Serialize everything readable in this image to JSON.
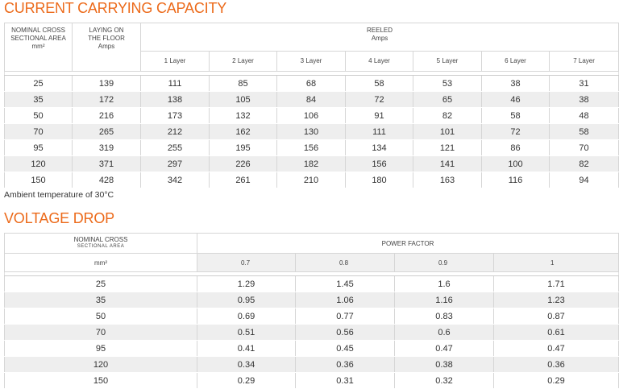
{
  "current_carrying": {
    "title": "CURRENT CARRYING CAPACITY",
    "col_area": [
      "NOMINAL CROSS",
      "SECTIONAL AREA",
      "mm²"
    ],
    "col_floor": [
      "LAYING ON",
      "THE FLOOR",
      "Amps"
    ],
    "reeled": [
      "REELED",
      "Amps"
    ],
    "layers": [
      "1 Layer",
      "2 Layer",
      "3 Layer",
      "4 Layer",
      "5 Layer",
      "6 Layer",
      "7 Layer"
    ],
    "rows": [
      [
        "25",
        "139",
        "111",
        "85",
        "68",
        "58",
        "53",
        "38",
        "31"
      ],
      [
        "35",
        "172",
        "138",
        "105",
        "84",
        "72",
        "65",
        "46",
        "38"
      ],
      [
        "50",
        "216",
        "173",
        "132",
        "106",
        "91",
        "82",
        "58",
        "48"
      ],
      [
        "70",
        "265",
        "212",
        "162",
        "130",
        "111",
        "101",
        "72",
        "58"
      ],
      [
        "95",
        "319",
        "255",
        "195",
        "156",
        "134",
        "121",
        "86",
        "70"
      ],
      [
        "120",
        "371",
        "297",
        "226",
        "182",
        "156",
        "141",
        "100",
        "82"
      ],
      [
        "150",
        "428",
        "342",
        "261",
        "210",
        "180",
        "163",
        "116",
        "94"
      ]
    ],
    "note": "Ambient temperature of 30°C"
  },
  "voltage_drop": {
    "title": "VOLTAGE DROP",
    "col_area": [
      "NOMINAL CROSS",
      "SECTIONAL AREA",
      "mm²"
    ],
    "power_factor": "POWER FACTOR",
    "factors": [
      "0.7",
      "0.8",
      "0.9",
      "1"
    ],
    "rows": [
      [
        "25",
        "1.29",
        "1.45",
        "1.6",
        "1.71"
      ],
      [
        "35",
        "0.95",
        "1.06",
        "1.16",
        "1.23"
      ],
      [
        "50",
        "0.69",
        "0.77",
        "0.83",
        "0.87"
      ],
      [
        "70",
        "0.51",
        "0.56",
        "0.6",
        "0.61"
      ],
      [
        "95",
        "0.41",
        "0.45",
        "0.47",
        "0.47"
      ],
      [
        "120",
        "0.34",
        "0.36",
        "0.38",
        "0.36"
      ],
      [
        "150",
        "0.29",
        "0.31",
        "0.32",
        "0.29"
      ]
    ]
  },
  "colors": {
    "accent": "#ec6a1a",
    "stripe": "#eeeeee",
    "border": "#cccccc"
  }
}
